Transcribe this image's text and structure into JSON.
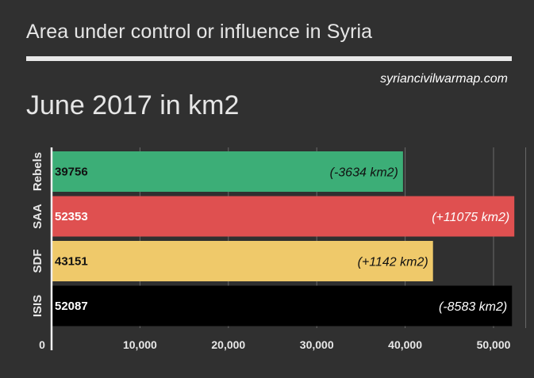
{
  "header": {
    "title": "Area under control or influence in Syria",
    "source": "syriancivilwarmap.com",
    "subtitle": "June 2017 in km2"
  },
  "chart_data": {
    "type": "bar",
    "orientation": "horizontal",
    "categories": [
      "Rebels",
      "SAA",
      "SDF",
      "ISIS"
    ],
    "values": [
      39756,
      52353,
      43151,
      52087
    ],
    "value_labels": [
      "39756",
      "52353",
      "43151",
      "52087"
    ],
    "changes": [
      "(-3634 km2)",
      "(+11075 km2)",
      "(+1142 km2)",
      "(-8583 km2)"
    ],
    "colors": [
      "#3cae77",
      "#df5050",
      "#efc96a",
      "#000000"
    ],
    "label_colors": [
      "#111111",
      "#ffffff",
      "#111111",
      "#ffffff"
    ],
    "xlim": [
      0,
      54000
    ],
    "xticks": [
      0,
      10000,
      20000,
      30000,
      40000,
      50000
    ],
    "xtick_labels": [
      "0",
      "10,000",
      "20,000",
      "30,000",
      "40,000",
      "50,000"
    ],
    "grid": true,
    "gridline_color": "#6a6a6a",
    "background": "#303030"
  }
}
